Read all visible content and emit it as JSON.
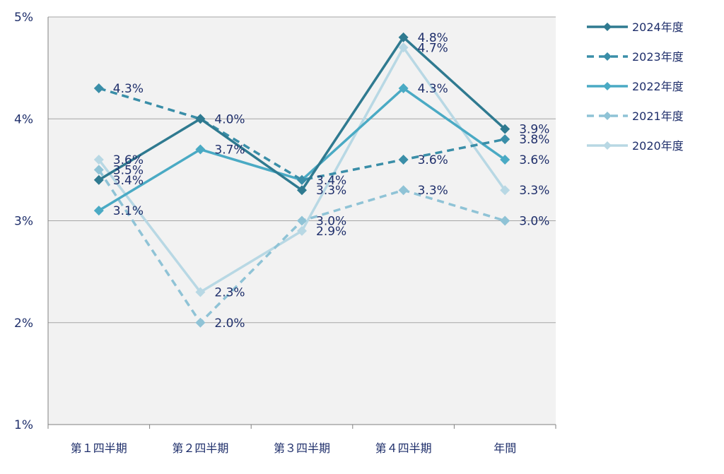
{
  "chart_data": {
    "type": "line",
    "categories": [
      "第１四半期",
      "第２四半期",
      "第３四半期",
      "第４四半期",
      "年間"
    ],
    "y_ticks": [
      "1%",
      "2%",
      "3%",
      "4%",
      "5%"
    ],
    "ylim": [
      1,
      5
    ],
    "grid": true,
    "legend_position": "top-right",
    "series": [
      {
        "name": "2024年度",
        "values": [
          3.4,
          4.0,
          3.3,
          4.8,
          3.9
        ],
        "labels": [
          "3.4%",
          "4.0%",
          "3.3%",
          "4.8%",
          "3.9%"
        ],
        "color": "#2f7a90",
        "dashed": false
      },
      {
        "name": "2023年度",
        "values": [
          4.3,
          4.0,
          3.4,
          3.6,
          3.8
        ],
        "labels": [
          "4.3%",
          "",
          "3.4%",
          "3.6%",
          "3.8%"
        ],
        "color": "#3a8ea8",
        "dashed": true
      },
      {
        "name": "2022年度",
        "values": [
          3.1,
          3.7,
          3.4,
          4.3,
          3.6
        ],
        "labels": [
          "3.1%",
          "3.7%",
          "",
          "4.3%",
          "3.6%"
        ],
        "color": "#4aaac4",
        "dashed": false
      },
      {
        "name": "2021年度",
        "values": [
          3.5,
          2.0,
          3.0,
          3.3,
          3.0
        ],
        "labels": [
          "3.5%",
          "2.0%",
          "3.0%",
          "3.3%",
          "3.0%"
        ],
        "color": "#8fc3d6",
        "dashed": true
      },
      {
        "name": "2020年度",
        "values": [
          3.6,
          2.3,
          2.9,
          4.7,
          3.3
        ],
        "labels": [
          "3.6%",
          "2.3%",
          "2.9%",
          "4.7%",
          "3.3%"
        ],
        "color": "#b8d8e4",
        "dashed": false
      }
    ]
  }
}
